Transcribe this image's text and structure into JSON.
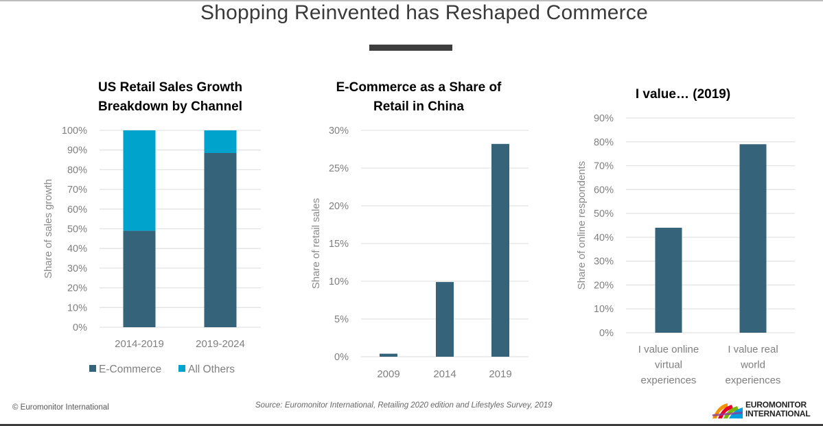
{
  "page": {
    "title": "Shopping Reinvented has Reshaped Commerce",
    "footer_copyright": "© Euromonitor International",
    "footer_source": "Source: Euromonitor International, Retailing 2020 edition and Lifestyles Survey, 2019",
    "logo": {
      "line1": "EUROMONITOR",
      "line2": "INTERNATIONAL",
      "icon": "euromonitor-logo-icon"
    }
  },
  "colors": {
    "ecommerce": "#35637a",
    "all_others": "#00a3cc",
    "grid": "#e3e3e3",
    "text_gray": "#7f7f7f"
  },
  "chart_data": [
    {
      "type": "bar",
      "stacked": true,
      "title_lines": [
        "US Retail Sales Growth",
        "Breakdown by Channel"
      ],
      "categories": [
        "2014-2019",
        "2019-2024"
      ],
      "series": [
        {
          "name": "E-Commerce",
          "values": [
            49,
            88.5
          ]
        },
        {
          "name": "All Others",
          "values": [
            51,
            11.5
          ]
        }
      ],
      "xlabel": "",
      "ylabel": "Share of sales growth",
      "ylim": [
        0,
        100
      ],
      "yticks": [
        "0%",
        "10%",
        "20%",
        "30%",
        "40%",
        "50%",
        "60%",
        "70%",
        "80%",
        "90%",
        "100%"
      ],
      "grid": true,
      "legend": "bottom"
    },
    {
      "type": "bar",
      "title_lines": [
        "E-Commerce as a Share of",
        "Retail in China"
      ],
      "categories": [
        "2009",
        "2014",
        "2019"
      ],
      "values": [
        0.4,
        9.9,
        28.2
      ],
      "xlabel": "",
      "ylabel": "Share of retail sales",
      "ylim": [
        0,
        30
      ],
      "yticks": [
        "0%",
        "5%",
        "10%",
        "15%",
        "20%",
        "25%",
        "30%"
      ],
      "grid": true
    },
    {
      "type": "bar",
      "title_lines": [
        "I value… (2019)"
      ],
      "categories": [
        [
          "I value online",
          "virtual",
          "experiences"
        ],
        [
          "I value real",
          "world",
          "experiences"
        ]
      ],
      "values": [
        44,
        79
      ],
      "xlabel": "",
      "ylabel": "Share of online respondents",
      "ylim": [
        0,
        90
      ],
      "yticks": [
        "0%",
        "10%",
        "20%",
        "30%",
        "40%",
        "50%",
        "60%",
        "70%",
        "80%",
        "90%"
      ],
      "grid": true
    }
  ]
}
